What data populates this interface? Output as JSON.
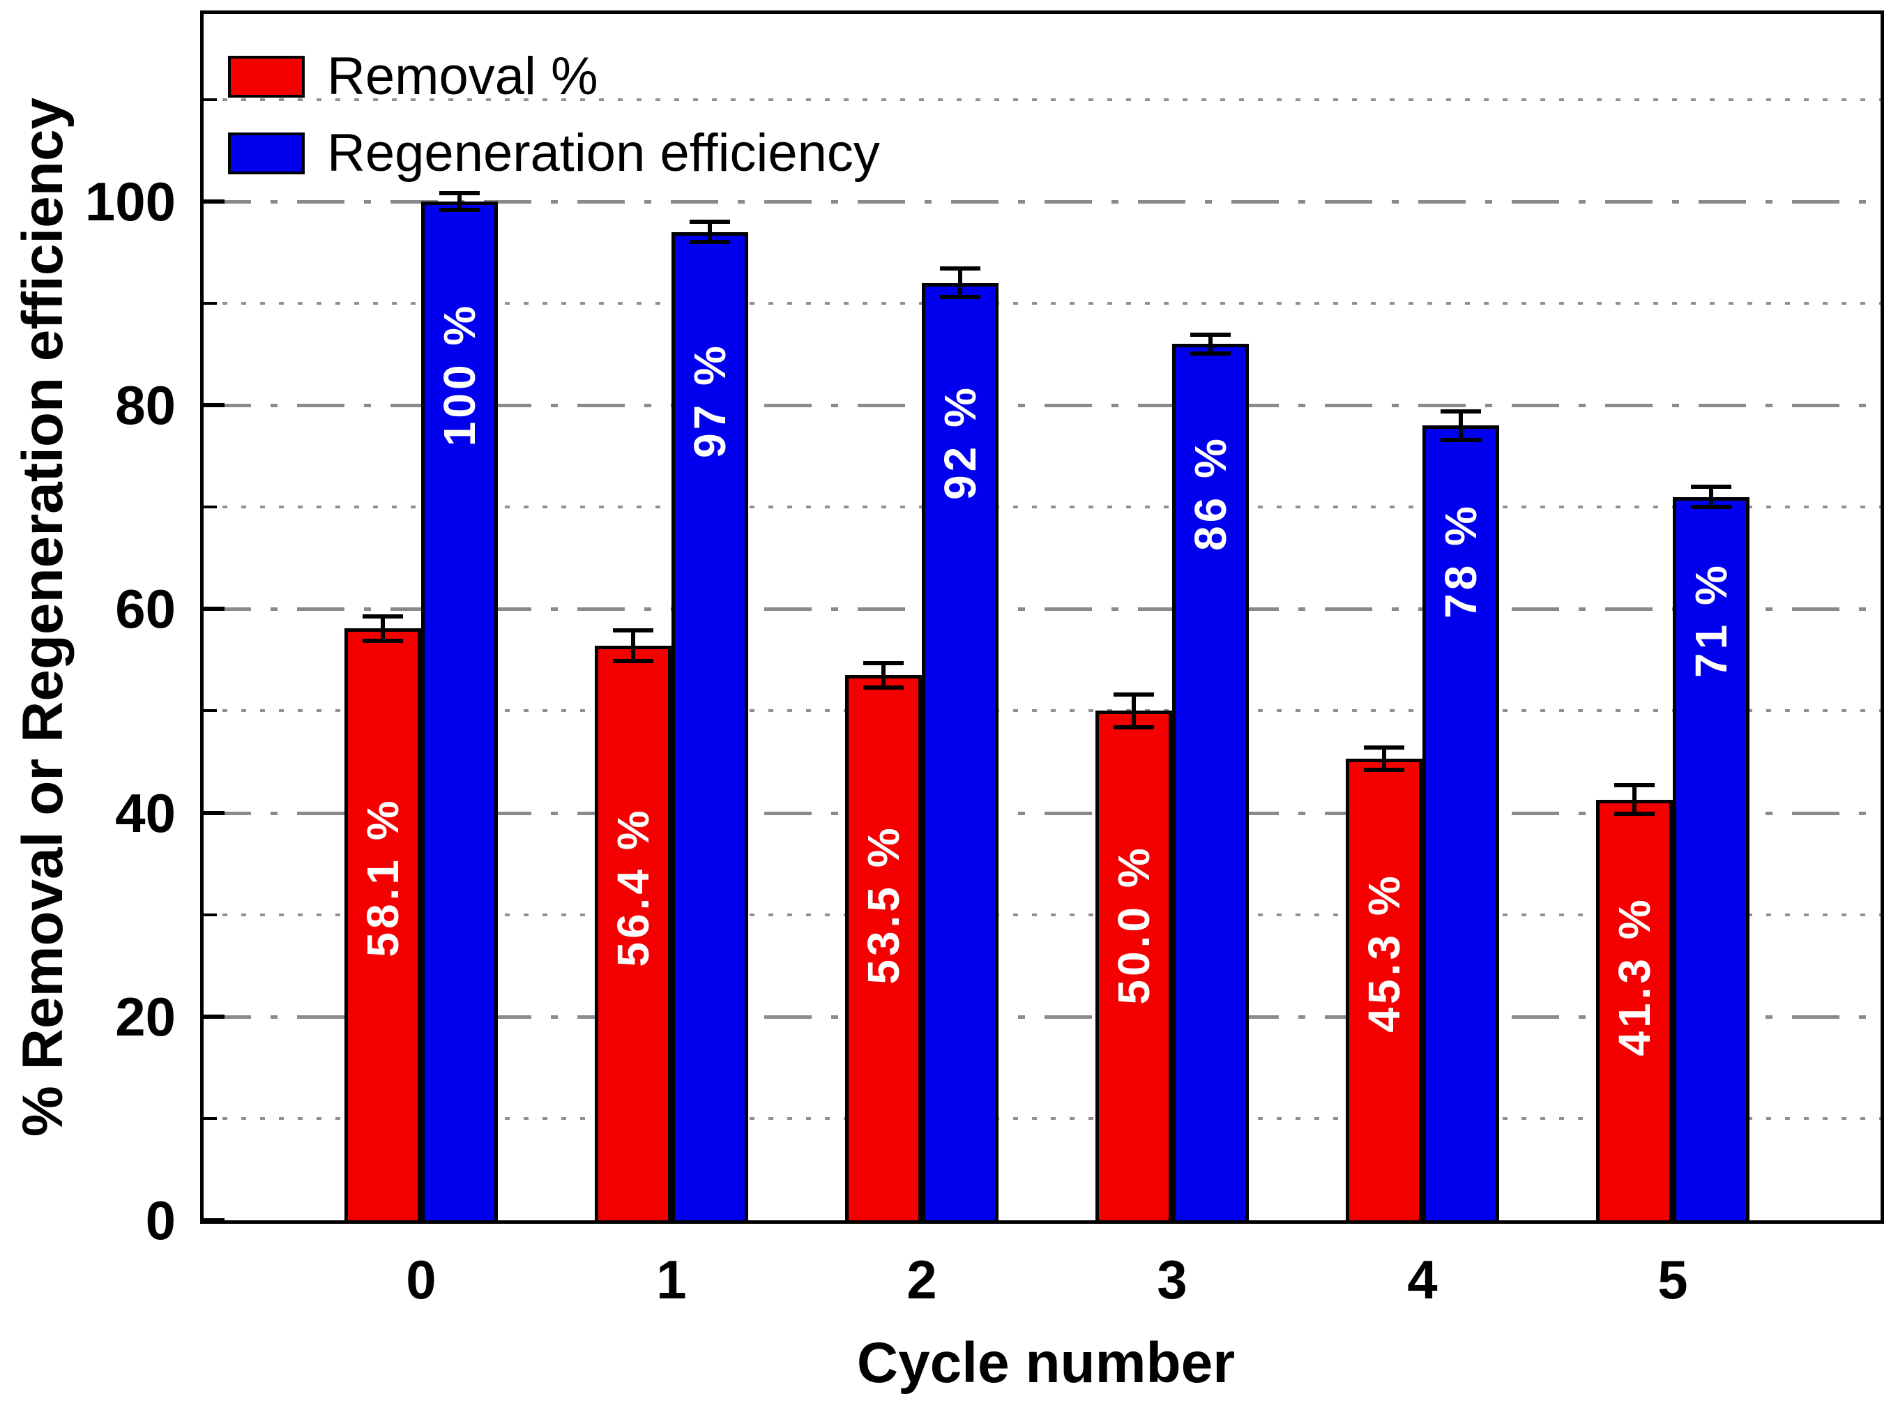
{
  "chart_data": {
    "type": "bar",
    "title": "",
    "xlabel": "Cycle number",
    "ylabel": "% Removal or Regeneration efficiency",
    "categories": [
      "0",
      "1",
      "2",
      "3",
      "4",
      "5"
    ],
    "series": [
      {
        "name": "Removal %",
        "color": "#f50000",
        "values": [
          58.1,
          56.4,
          53.5,
          50.0,
          45.3,
          41.3
        ],
        "errors": [
          1.2,
          1.5,
          1.2,
          1.6,
          1.1,
          1.4
        ],
        "bar_labels": [
          "58.1 %",
          "56.4 %",
          "53.5 %",
          "50.0 %",
          "45.3 %",
          "41.3 %"
        ]
      },
      {
        "name": "Regeneration efficiency",
        "color": "#0000ee",
        "values": [
          100,
          97,
          92,
          86,
          78,
          71
        ],
        "errors": [
          0.8,
          1.0,
          1.4,
          0.9,
          1.4,
          1.0
        ],
        "bar_labels": [
          "100 %",
          "97 %",
          "92 %",
          "86 %",
          "78 %",
          "71 %"
        ]
      }
    ],
    "ylim": [
      0,
      118.4
    ],
    "yticks_major": [
      0,
      20,
      40,
      60,
      80,
      100
    ],
    "yticks_minor": [
      10,
      30,
      50,
      70,
      90,
      110
    ],
    "grid": {
      "major_style": "dash-dot",
      "minor_style": "dotted",
      "color": "#8a8a8a"
    },
    "legend_position": "top-left-inside",
    "bar_label_color": "#ffffff",
    "error_bar_color": "#000000",
    "axis_color": "#000000"
  }
}
